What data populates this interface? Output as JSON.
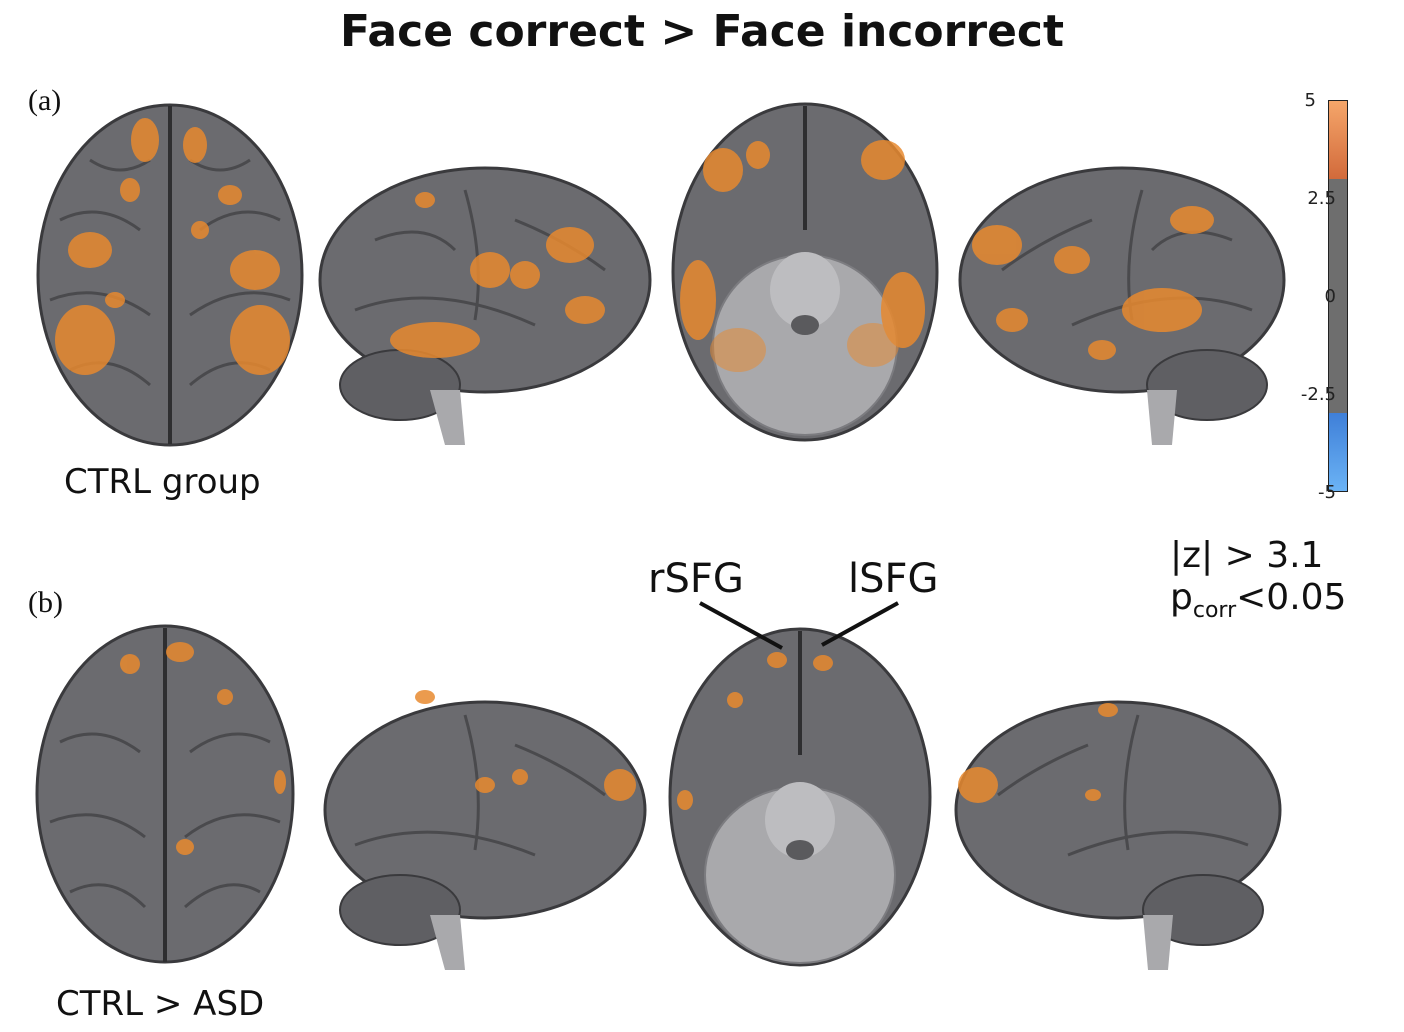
{
  "title": "Face correct > Face incorrect",
  "panels": [
    {
      "label": "(a)",
      "group": "CTRL group"
    },
    {
      "label": "(b)",
      "group": "CTRL > ASD"
    }
  ],
  "annotations": {
    "right_sfg": "rSFG",
    "left_sfg": "lSFG"
  },
  "colorbar": {
    "ticks": [
      "5",
      "2.5",
      "0",
      "-2.5",
      "-5"
    ],
    "colors": {
      "positive": "#e8803a",
      "neutral": "#6e6e6e",
      "negative": "#4e95e6"
    }
  },
  "threshold": {
    "z": "|z| > 3.1",
    "p_main": "p",
    "p_sub": "corr",
    "p_value": "<0.05"
  },
  "colors": {
    "brain": "#6b6b6f",
    "brain_stem": "#a9a9ac",
    "activation": "#e7892f"
  }
}
